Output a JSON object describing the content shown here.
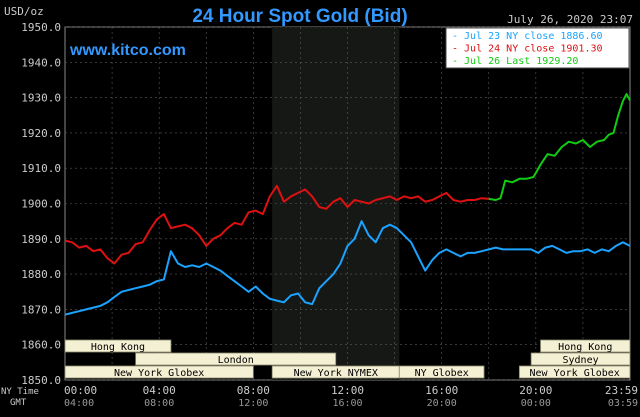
{
  "header": {
    "unit_label": "USD/oz",
    "title": "24 Hour Spot Gold (Bid)",
    "datetime": "July 26, 2020 23:07",
    "watermark": "www.kitco.com"
  },
  "colors": {
    "background": "#000000",
    "plot_background": "#000000",
    "shaded_session": "#161816",
    "grid": "#5a5a5a",
    "blue": "#1aa3ff",
    "red": "#dd1111",
    "green": "#11cc11",
    "title": "#3399ff",
    "axis_text": "#cccccc",
    "session_fill": "#f4f0d4",
    "session_text": "#000000"
  },
  "legend": [
    {
      "label": "- Jul 23 NY close 1886.60",
      "color": "#1aa3ff"
    },
    {
      "label": "- Jul 24 NY close 1901.30",
      "color": "#dd1111"
    },
    {
      "label": "- Jul 26 Last 1929.20",
      "color": "#11cc11"
    }
  ],
  "sessions": [
    {
      "name": "Hong Kong",
      "start": -0.5,
      "end": 4.5,
      "row": 0
    },
    {
      "name": "Hong Kong",
      "start": 20.2,
      "end": 24.0,
      "row": 0
    },
    {
      "name": "London",
      "start": 3.0,
      "end": 11.5,
      "row": 1
    },
    {
      "name": "Sydney",
      "start": 19.8,
      "end": 24.0,
      "row": 1
    },
    {
      "name": "New York Globex",
      "start": -0.5,
      "end": 8.0,
      "row": 2
    },
    {
      "name": "New York NYMEX",
      "start": 8.8,
      "end": 14.2,
      "row": 2
    },
    {
      "name": "NY Globex",
      "start": 14.2,
      "end": 17.8,
      "row": 2
    },
    {
      "name": "New York Globex",
      "start": 19.3,
      "end": 24.0,
      "row": 2
    }
  ],
  "bottom_labels": {
    "ny_time": "NY Time",
    "gmt": "GMT"
  },
  "chart_data": {
    "type": "line",
    "title": "24 Hour Spot Gold (Bid)",
    "ylabel": "USD/oz",
    "ylim": [
      1850,
      1950
    ],
    "xlim": [
      0,
      24
    ],
    "yticks": [
      "1850.0",
      "1860.0",
      "1870.0",
      "1880.0",
      "1890.0",
      "1900.0",
      "1910.0",
      "1920.0",
      "1930.0",
      "1940.0",
      "1950.0"
    ],
    "xticks_ny": [
      "00:00",
      "04:00",
      "08:00",
      "12:00",
      "16:00",
      "20:00",
      "23:59"
    ],
    "xticks_gmt": [
      "04:00",
      "08:00",
      "12:00",
      "16:00",
      "20:00",
      "00:00",
      "03:59"
    ],
    "shaded_range": [
      8.8,
      14.2
    ],
    "grid": true,
    "legend_position": "top-right",
    "series": [
      {
        "name": "Jul 23 NY close 1886.60",
        "color": "#1aa3ff",
        "x": [
          0,
          0.3,
          0.6,
          0.9,
          1.2,
          1.5,
          1.8,
          2.1,
          2.4,
          2.7,
          3.0,
          3.3,
          3.6,
          3.9,
          4.2,
          4.5,
          4.8,
          5.1,
          5.4,
          5.7,
          6.0,
          6.3,
          6.6,
          6.9,
          7.2,
          7.5,
          7.8,
          8.1,
          8.4,
          8.7,
          9.0,
          9.3,
          9.6,
          9.9,
          10.2,
          10.5,
          10.8,
          11.1,
          11.4,
          11.7,
          12.0,
          12.3,
          12.6,
          12.9,
          13.2,
          13.5,
          13.8,
          14.1,
          14.4,
          14.7,
          15.0,
          15.3,
          15.6,
          15.9,
          16.2,
          16.5,
          16.8,
          17.1,
          17.4,
          17.7,
          18.0,
          18.3,
          18.6,
          18.9,
          19.2,
          19.5,
          19.8,
          20.1,
          20.4,
          20.7,
          21.0,
          21.3,
          21.6,
          21.9,
          22.2,
          22.5,
          22.8,
          23.1,
          23.4,
          23.7,
          24.0
        ],
        "values": [
          1868.5,
          1869.0,
          1869.5,
          1870.0,
          1870.5,
          1871.0,
          1872.0,
          1873.5,
          1875.0,
          1875.5,
          1876.0,
          1876.5,
          1877.0,
          1878.0,
          1878.5,
          1886.5,
          1883.0,
          1882.0,
          1882.5,
          1882.0,
          1883.0,
          1882.0,
          1881.0,
          1879.5,
          1878.0,
          1876.5,
          1875.0,
          1876.5,
          1874.5,
          1873.0,
          1872.5,
          1872.0,
          1874.0,
          1874.5,
          1872.0,
          1871.5,
          1876.0,
          1878.0,
          1880.0,
          1883.0,
          1888.0,
          1890.0,
          1895.0,
          1891.0,
          1889.0,
          1893.0,
          1894.0,
          1893.0,
          1891.0,
          1889.0,
          1885.0,
          1881.0,
          1884.0,
          1886.0,
          1887.0,
          1886.0,
          1885.0,
          1886.0,
          1886.0,
          1886.5,
          1887.0,
          1887.5,
          1887.0,
          1887.0,
          1887.0,
          1887.0,
          1887.0,
          1886.0,
          1887.5,
          1888.0,
          1887.0,
          1886.0,
          1886.5,
          1886.5,
          1887.0,
          1886.0,
          1887.0,
          1886.5,
          1888.0,
          1889.0,
          1888.0
        ]
      },
      {
        "name": "Jul 24 NY close 1901.30",
        "color": "#dd1111",
        "x": [
          0,
          0.3,
          0.6,
          0.9,
          1.2,
          1.5,
          1.8,
          2.1,
          2.4,
          2.7,
          3.0,
          3.3,
          3.6,
          3.9,
          4.2,
          4.5,
          4.8,
          5.1,
          5.4,
          5.7,
          6.0,
          6.3,
          6.6,
          6.9,
          7.2,
          7.5,
          7.8,
          8.1,
          8.4,
          8.7,
          9.0,
          9.3,
          9.6,
          9.9,
          10.2,
          10.5,
          10.8,
          11.1,
          11.4,
          11.7,
          12.0,
          12.3,
          12.6,
          12.9,
          13.2,
          13.5,
          13.8,
          14.1,
          14.4,
          14.7,
          15.0,
          15.3,
          15.6,
          15.9,
          16.2,
          16.5,
          16.8,
          17.1,
          17.4,
          17.7,
          18.0
        ],
        "values": [
          1889.5,
          1889.0,
          1887.5,
          1888.0,
          1886.5,
          1887.0,
          1884.5,
          1883.0,
          1885.5,
          1886.0,
          1888.5,
          1889.0,
          1892.5,
          1895.5,
          1897.0,
          1893.0,
          1893.5,
          1894.0,
          1893.0,
          1891.0,
          1888.0,
          1890.0,
          1891.0,
          1893.0,
          1894.5,
          1894.0,
          1897.5,
          1898.0,
          1897.0,
          1902.0,
          1905.0,
          1900.5,
          1902.0,
          1903.0,
          1904.0,
          1902.0,
          1899.0,
          1898.5,
          1900.5,
          1901.5,
          1899.0,
          1901.0,
          1900.5,
          1900.0,
          1901.0,
          1901.5,
          1902.0,
          1901.0,
          1902.0,
          1901.5,
          1902.0,
          1900.5,
          1901.0,
          1902.0,
          1903.0,
          1901.0,
          1900.5,
          1901.0,
          1901.0,
          1901.5,
          1901.3
        ]
      },
      {
        "name": "Jul 26 Last 1929.20",
        "color": "#11cc11",
        "x": [
          18.0,
          18.3,
          18.5,
          18.7,
          19.0,
          19.3,
          19.6,
          19.9,
          20.2,
          20.5,
          20.8,
          21.1,
          21.4,
          21.7,
          22.0,
          22.3,
          22.6,
          22.9,
          23.1,
          23.3,
          23.5,
          23.7,
          23.85,
          24.0
        ],
        "values": [
          1901.3,
          1901.0,
          1901.5,
          1906.5,
          1906.0,
          1907.0,
          1907.0,
          1907.5,
          1911.0,
          1914.0,
          1913.5,
          1916.0,
          1917.5,
          1917.0,
          1918.0,
          1916.0,
          1917.5,
          1918.0,
          1919.5,
          1920.0,
          1925.0,
          1929.0,
          1931.0,
          1929.2
        ]
      }
    ]
  }
}
